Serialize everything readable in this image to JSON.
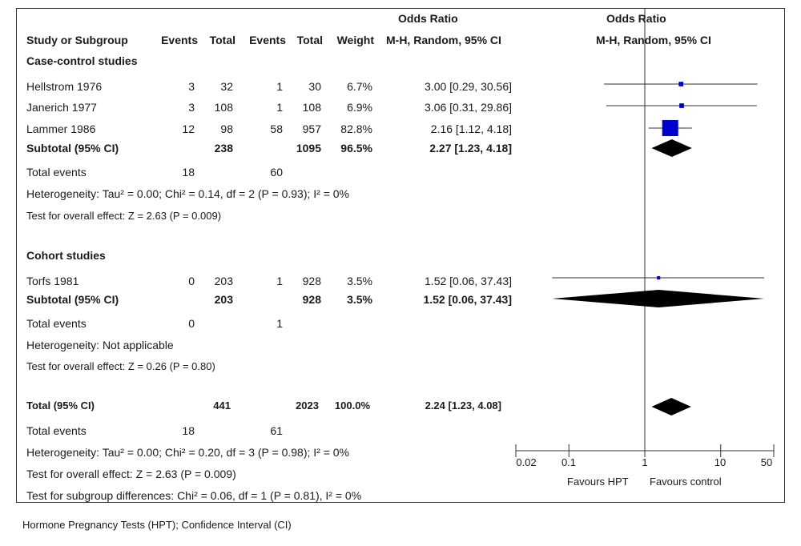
{
  "header": {
    "group1_label": "Odds Ratio",
    "group1_sub": "M-H, Random, 95% CI",
    "group2_label": "Odds Ratio",
    "group2_sub": "M-H, Random, 95% CI",
    "columns": [
      "Study or Subgroup",
      "Events",
      "Total",
      "Events",
      "Total",
      "Weight"
    ]
  },
  "sections": [
    {
      "title": "Case-control studies",
      "studies": [
        {
          "name": "Hellstrom 1976",
          "ev1": "3",
          "tot1": "32",
          "ev2": "1",
          "tot2": "30",
          "weight": "6.7%",
          "ci_text": "3.00 [0.29, 30.56]"
        },
        {
          "name": "Janerich 1977",
          "ev1": "3",
          "tot1": "108",
          "ev2": "1",
          "tot2": "108",
          "weight": "6.9%",
          "ci_text": "3.06 [0.31, 29.86]"
        },
        {
          "name": "Lammer 1986",
          "ev1": "12",
          "tot1": "98",
          "ev2": "58",
          "tot2": "957",
          "weight": "82.8%",
          "ci_text": "2.16 [1.12, 4.18]"
        }
      ],
      "subtotal": {
        "label": "Subtotal (95% CI)",
        "tot1": "238",
        "tot2": "1095",
        "weight": "96.5%",
        "ci_text": "2.27 [1.23, 4.18]"
      },
      "total_events": {
        "label": "Total events",
        "ev1": "18",
        "ev2": "60"
      },
      "heterogeneity": "Heterogeneity: Tau² = 0.00; Chi² = 0.14, df = 2 (P = 0.93); I² = 0%",
      "overall": "Test for overall effect: Z = 2.63 (P = 0.009)"
    },
    {
      "title": "Cohort studies",
      "studies": [
        {
          "name": "Torfs 1981",
          "ev1": "0",
          "tot1": "203",
          "ev2": "1",
          "tot2": "928",
          "weight": "3.5%",
          "ci_text": "1.52 [0.06, 37.43]"
        }
      ],
      "subtotal": {
        "label": "Subtotal (95% CI)",
        "tot1": "203",
        "tot2": "928",
        "weight": "3.5%",
        "ci_text": "1.52 [0.06, 37.43]"
      },
      "total_events": {
        "label": "Total events",
        "ev1": "0",
        "ev2": "1"
      },
      "heterogeneity": "Heterogeneity: Not applicable",
      "overall": "Test for overall effect: Z = 0.26 (P = 0.80)"
    }
  ],
  "total": {
    "label": "Total (95% CI)",
    "tot1": "441",
    "tot2": "2023",
    "weight": "100.0%",
    "ci_text": "2.24 [1.23, 4.08]"
  },
  "total_events": {
    "label": "Total events",
    "ev1": "18",
    "ev2": "61"
  },
  "total_heterogeneity": "Heterogeneity: Tau² = 0.00; Chi² = 0.20, df = 3 (P = 0.98); I² = 0%",
  "total_overall": "Test for overall effect: Z = 2.63 (P = 0.009)",
  "subgroup_diff": "Test for subgroup differences: Chi² = 0.06, df = 1 (P = 0.81), I² = 0%",
  "axis": {
    "ticks": [
      "0.02",
      "0.1",
      "1",
      "10",
      "50"
    ],
    "favours_left": "Favours HPT",
    "favours_right": "Favours control"
  },
  "caption": "Hormone Pregnancy Tests (HPT); Confidence Interval (CI)",
  "chart_data": {
    "type": "forest",
    "scale": "log",
    "xlim": [
      0.02,
      50
    ],
    "ticks": [
      0.02,
      0.1,
      1,
      10,
      50
    ],
    "reference_line": 1,
    "studies": [
      {
        "name": "Hellstrom 1976",
        "or": 3.0,
        "lo": 0.29,
        "hi": 30.56,
        "weight": 6.7
      },
      {
        "name": "Janerich 1977",
        "or": 3.06,
        "lo": 0.31,
        "hi": 29.86,
        "weight": 6.9
      },
      {
        "name": "Lammer 1986",
        "or": 2.16,
        "lo": 1.12,
        "hi": 4.18,
        "weight": 82.8
      },
      {
        "name": "Torfs 1981",
        "or": 1.52,
        "lo": 0.06,
        "hi": 37.43,
        "weight": 3.5
      }
    ],
    "summaries": [
      {
        "name": "Subtotal (95% CI) Case-control studies",
        "or": 2.27,
        "lo": 1.23,
        "hi": 4.18
      },
      {
        "name": "Subtotal (95% CI) Cohort studies",
        "or": 1.52,
        "lo": 0.06,
        "hi": 37.43
      },
      {
        "name": "Total (95% CI)",
        "or": 2.24,
        "lo": 1.23,
        "hi": 4.08
      }
    ],
    "colors": {
      "study_marker": "#0000cc",
      "summary": "#000000",
      "line": "#333333"
    }
  }
}
